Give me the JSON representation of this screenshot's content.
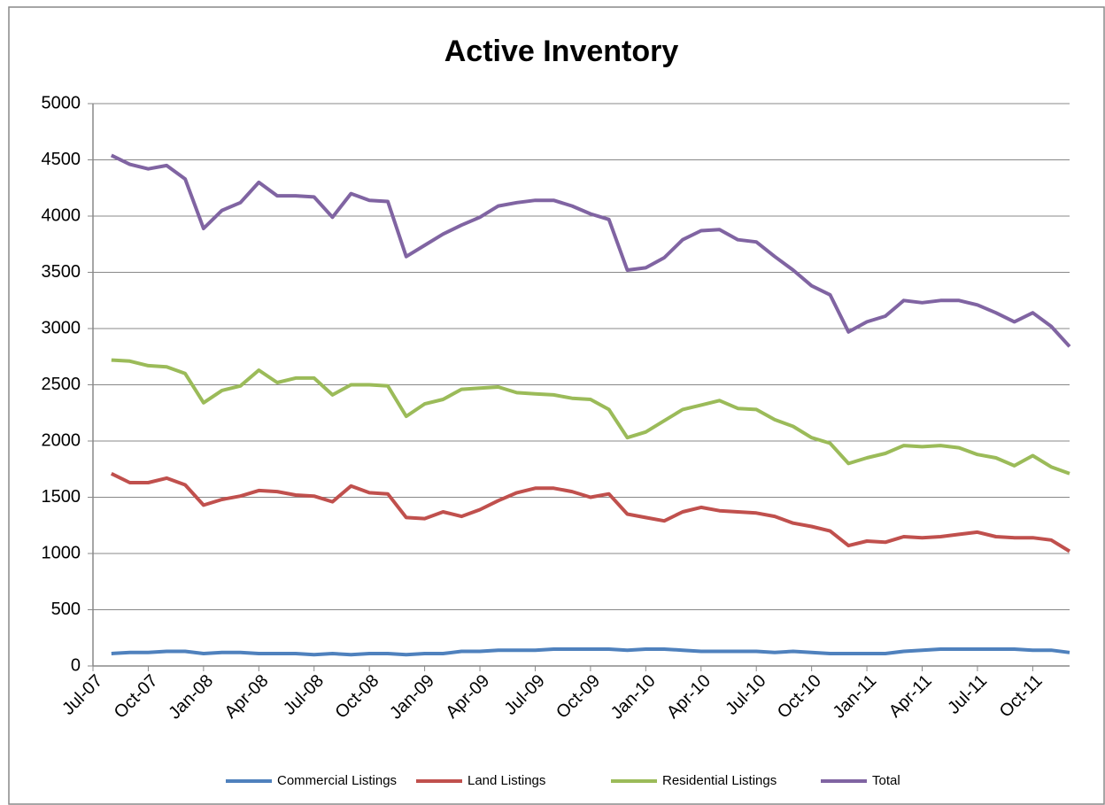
{
  "chart_data": {
    "type": "line",
    "title": "Active Inventory",
    "categories": [
      "Jul-07",
      null,
      null,
      "Oct-07",
      null,
      null,
      "Jan-08",
      null,
      null,
      "Apr-08",
      null,
      null,
      "Jul-08",
      null,
      null,
      "Oct-08",
      null,
      null,
      "Jan-09",
      null,
      null,
      "Apr-09",
      null,
      null,
      "Jul-09",
      null,
      null,
      "Oct-09",
      null,
      null,
      "Jan-10",
      null,
      null,
      "Apr-10",
      null,
      null,
      "Jul-10",
      null,
      null,
      "Oct-10",
      null,
      null,
      "Jan-11",
      null,
      null,
      "Apr-11",
      null,
      null,
      "Jul-11",
      null,
      null,
      "Oct-11",
      null,
      null
    ],
    "series": [
      {
        "name": "Commercial Listings",
        "color": "#4f81bd",
        "values": [
          null,
          110,
          120,
          120,
          130,
          130,
          110,
          120,
          120,
          110,
          110,
          110,
          100,
          110,
          100,
          110,
          110,
          100,
          110,
          110,
          130,
          130,
          140,
          140,
          140,
          150,
          150,
          150,
          150,
          140,
          150,
          150,
          140,
          130,
          130,
          130,
          130,
          120,
          130,
          120,
          110,
          110,
          110,
          110,
          130,
          140,
          150,
          150,
          150,
          150,
          150,
          140,
          140,
          120
        ]
      },
      {
        "name": "Land Listings",
        "color": "#c0504d",
        "values": [
          null,
          1710,
          1630,
          1630,
          1670,
          1610,
          1430,
          1480,
          1510,
          1560,
          1550,
          1520,
          1510,
          1460,
          1600,
          1540,
          1530,
          1320,
          1310,
          1370,
          1330,
          1390,
          1470,
          1540,
          1580,
          1580,
          1550,
          1500,
          1530,
          1350,
          1320,
          1290,
          1370,
          1410,
          1380,
          1370,
          1360,
          1330,
          1270,
          1240,
          1200,
          1070,
          1110,
          1100,
          1150,
          1140,
          1150,
          1170,
          1190,
          1150,
          1140,
          1140,
          1120,
          1020
        ]
      },
      {
        "name": "Residential Listings",
        "color": "#9bbb59",
        "values": [
          null,
          2720,
          2710,
          2670,
          2660,
          2600,
          2340,
          2450,
          2490,
          2630,
          2520,
          2560,
          2560,
          2410,
          2500,
          2500,
          2490,
          2220,
          2330,
          2370,
          2460,
          2470,
          2480,
          2430,
          2420,
          2410,
          2380,
          2370,
          2280,
          2030,
          2080,
          2180,
          2280,
          2320,
          2360,
          2290,
          2280,
          2190,
          2130,
          2030,
          1980,
          1800,
          1850,
          1890,
          1960,
          1950,
          1960,
          1940,
          1880,
          1850,
          1780,
          1870,
          1770,
          1710
        ]
      },
      {
        "name": "Total",
        "color": "#8064a2",
        "values": [
          null,
          4540,
          4460,
          4420,
          4450,
          4330,
          3890,
          4050,
          4120,
          4300,
          4180,
          4180,
          4170,
          3990,
          4200,
          4140,
          4130,
          3640,
          3740,
          3840,
          3920,
          3990,
          4090,
          4120,
          4140,
          4140,
          4090,
          4020,
          3970,
          3520,
          3540,
          3630,
          3790,
          3870,
          3880,
          3790,
          3770,
          3640,
          3520,
          3380,
          3300,
          2970,
          3060,
          3110,
          3250,
          3230,
          3250,
          3250,
          3210,
          3140,
          3060,
          3140,
          3020,
          2840
        ]
      }
    ],
    "ylim": [
      0,
      5000
    ],
    "yticks": [
      0,
      500,
      1000,
      1500,
      2000,
      2500,
      3000,
      3500,
      4000,
      4500,
      5000
    ],
    "grid": true,
    "legend": "bottom"
  }
}
